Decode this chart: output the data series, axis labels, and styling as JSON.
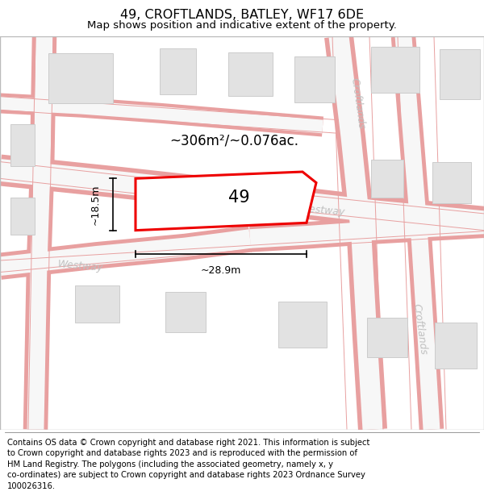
{
  "title": "49, CROFTLANDS, BATLEY, WF17 6DE",
  "subtitle": "Map shows position and indicative extent of the property.",
  "footer": "Contains OS data © Crown copyright and database right 2021. This information is subject\nto Crown copyright and database rights 2023 and is reproduced with the permission of\nHM Land Registry. The polygons (including the associated geometry, namely x, y\nco-ordinates) are subject to Crown copyright and database rights 2023 Ordnance Survey\n100026316.",
  "map_bg": "#f7f7f7",
  "road_fill": "#f5f5f5",
  "road_border": "#e8a0a0",
  "building_fill": "#e2e2e2",
  "building_edge": "#cccccc",
  "plot_fill": "#ffffff",
  "plot_edge": "#ee0000",
  "plot_linewidth": 2.2,
  "area_text": "~306m²/~0.076ac.",
  "plot_label": "49",
  "dim_width": "~28.9m",
  "dim_height": "~18.5m",
  "title_fontsize": 11.5,
  "subtitle_fontsize": 9.5,
  "footer_fontsize": 7.2,
  "road_label_color": "#c0c0c0",
  "road_label_size": 9
}
